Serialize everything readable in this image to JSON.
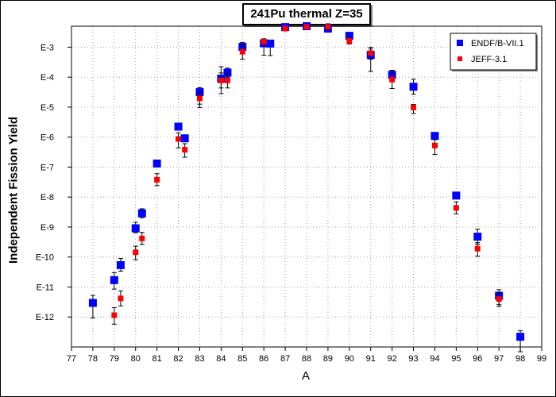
{
  "chart_data": {
    "type": "scatter",
    "title": "241Pu thermal Z=35",
    "xlabel": "A",
    "ylabel": "Independent Fission Yield",
    "xlim": [
      77,
      99
    ],
    "ylog_exponent_range": [
      -13,
      -2.3
    ],
    "x_ticks": [
      "77",
      "78",
      "79",
      "80",
      "81",
      "82",
      "83",
      "84",
      "85",
      "86",
      "87",
      "88",
      "89",
      "90",
      "91",
      "92",
      "93",
      "94",
      "95",
      "96",
      "97",
      "98",
      "99"
    ],
    "y_ticks": [
      {
        "label": "E-3",
        "exp": -3
      },
      {
        "label": "E-4",
        "exp": -4
      },
      {
        "label": "E-5",
        "exp": -5
      },
      {
        "label": "E-6",
        "exp": -6
      },
      {
        "label": "E-7",
        "exp": -7
      },
      {
        "label": "E-8",
        "exp": -8
      },
      {
        "label": "E-9",
        "exp": -9
      },
      {
        "label": "E-10",
        "exp": -10
      },
      {
        "label": "E-11",
        "exp": -11
      },
      {
        "label": "E-12",
        "exp": -12
      }
    ],
    "grid": true,
    "legend_position": "top-right",
    "series": [
      {
        "name": "ENDF/B-VII.1",
        "color": "#0000ff",
        "marker": "square-large",
        "points": [
          {
            "x": 78.0,
            "exp": -11.53,
            "err_lo": 0.5,
            "err_hi": 0.25
          },
          {
            "x": 79.0,
            "exp": -10.77,
            "err_lo": 0.3,
            "err_hi": 0.25
          },
          {
            "x": 79.3,
            "exp": -10.27,
            "err_lo": 0.2,
            "err_hi": 0.22
          },
          {
            "x": 80.0,
            "exp": -9.04,
            "err_lo": 0.15,
            "err_hi": 0.2
          },
          {
            "x": 80.3,
            "exp": -8.54,
            "err_lo": 0.15,
            "err_hi": 0.15
          },
          {
            "x": 81.0,
            "exp": -6.88,
            "err_lo": 0.1,
            "err_hi": 0.1
          },
          {
            "x": 82.0,
            "exp": -5.65,
            "err_lo": 0.1,
            "err_hi": 0.1
          },
          {
            "x": 82.3,
            "exp": -6.04,
            "err_lo": 0.1,
            "err_hi": 0.1
          },
          {
            "x": 83.0,
            "exp": -4.5,
            "err_lo": 0.4,
            "err_hi": 0.15
          },
          {
            "x": 84.0,
            "exp": -4.05,
            "err_lo": 0.5,
            "err_hi": 0.4
          },
          {
            "x": 84.3,
            "exp": -3.85,
            "err_lo": 0.15,
            "err_hi": 0.15
          },
          {
            "x": 85.0,
            "exp": -2.99,
            "err_lo": 0.2,
            "err_hi": 0.15
          },
          {
            "x": 86.0,
            "exp": -2.87,
            "err_lo": 0.4,
            "err_hi": 0.1
          },
          {
            "x": 86.3,
            "exp": -2.88,
            "err_lo": 0.4,
            "err_hi": 0.1
          },
          {
            "x": 87.0,
            "exp": -2.33,
            "err_lo": 0.05,
            "err_hi": 0.05
          },
          {
            "x": 88.0,
            "exp": -2.3,
            "err_lo": 0.05,
            "err_hi": 0.05
          },
          {
            "x": 89.0,
            "exp": -2.38,
            "err_lo": 0.05,
            "err_hi": 0.05
          },
          {
            "x": 90.0,
            "exp": -2.62,
            "err_lo": 0.1,
            "err_hi": 0.05
          },
          {
            "x": 91.0,
            "exp": -3.26,
            "err_lo": 0.55,
            "err_hi": 0.2
          },
          {
            "x": 92.0,
            "exp": -3.92,
            "err_lo": 0.15,
            "err_hi": 0.15
          },
          {
            "x": 93.0,
            "exp": -4.32,
            "err_lo": 0.25,
            "err_hi": 0.25
          },
          {
            "x": 94.0,
            "exp": -5.96,
            "err_lo": 0.1,
            "err_hi": 0.1
          },
          {
            "x": 95.0,
            "exp": -7.95,
            "err_lo": 0.1,
            "err_hi": 0.1
          },
          {
            "x": 96.0,
            "exp": -9.32,
            "err_lo": 0.25,
            "err_hi": 0.25
          },
          {
            "x": 97.0,
            "exp": -11.29,
            "err_lo": 0.3,
            "err_hi": 0.2
          },
          {
            "x": 98.0,
            "exp": -12.66,
            "err_lo": 0.5,
            "err_hi": 0.2
          }
        ]
      },
      {
        "name": "JEFF-3.1",
        "color": "#ff0000",
        "marker": "square-small",
        "points": [
          {
            "x": 79.0,
            "exp": -11.94,
            "err_lo": 0.3,
            "err_hi": 0.25
          },
          {
            "x": 79.3,
            "exp": -11.38,
            "err_lo": 0.25,
            "err_hi": 0.25
          },
          {
            "x": 80.0,
            "exp": -9.84,
            "err_lo": 0.25,
            "err_hi": 0.2
          },
          {
            "x": 80.3,
            "exp": -9.38,
            "err_lo": 0.2,
            "err_hi": 0.2
          },
          {
            "x": 81.0,
            "exp": -7.42,
            "err_lo": 0.2,
            "err_hi": 0.2
          },
          {
            "x": 82.0,
            "exp": -6.06,
            "err_lo": 0.3,
            "err_hi": 0.2
          },
          {
            "x": 82.3,
            "exp": -6.42,
            "err_lo": 0.25,
            "err_hi": 0.2
          },
          {
            "x": 83.0,
            "exp": -4.71,
            "err_lo": 0.3,
            "err_hi": 0.2
          },
          {
            "x": 84.0,
            "exp": -4.11,
            "err_lo": 0.25,
            "err_hi": 0.25
          },
          {
            "x": 84.3,
            "exp": -4.11,
            "err_lo": 0.25,
            "err_hi": 0.25
          },
          {
            "x": 85.0,
            "exp": -3.15,
            "err_lo": 0.25,
            "err_hi": 0.2
          },
          {
            "x": 86.0,
            "exp": -2.82,
            "err_lo": 0.1,
            "err_hi": 0.1
          },
          {
            "x": 87.0,
            "exp": -2.38,
            "err_lo": 0.05,
            "err_hi": 0.05
          },
          {
            "x": 88.0,
            "exp": -2.32,
            "err_lo": 0.05,
            "err_hi": 0.05
          },
          {
            "x": 89.0,
            "exp": -2.32,
            "err_lo": 0.1,
            "err_hi": 0.1
          },
          {
            "x": 90.0,
            "exp": -2.79,
            "err_lo": 0.1,
            "err_hi": 0.1
          },
          {
            "x": 91.0,
            "exp": -3.2,
            "err_lo": 0.2,
            "err_hi": 0.2
          },
          {
            "x": 92.0,
            "exp": -4.08,
            "err_lo": 0.3,
            "err_hi": 0.25
          },
          {
            "x": 93.0,
            "exp": -5.01,
            "err_lo": 0.2,
            "err_hi": 0.1
          },
          {
            "x": 94.0,
            "exp": -6.28,
            "err_lo": 0.3,
            "err_hi": 0.2
          },
          {
            "x": 95.0,
            "exp": -8.36,
            "err_lo": 0.2,
            "err_hi": 0.2
          },
          {
            "x": 96.0,
            "exp": -9.72,
            "err_lo": 0.25,
            "err_hi": 0.2
          },
          {
            "x": 97.0,
            "exp": -11.4,
            "err_lo": 0.25,
            "err_hi": 0.2
          }
        ]
      }
    ]
  }
}
